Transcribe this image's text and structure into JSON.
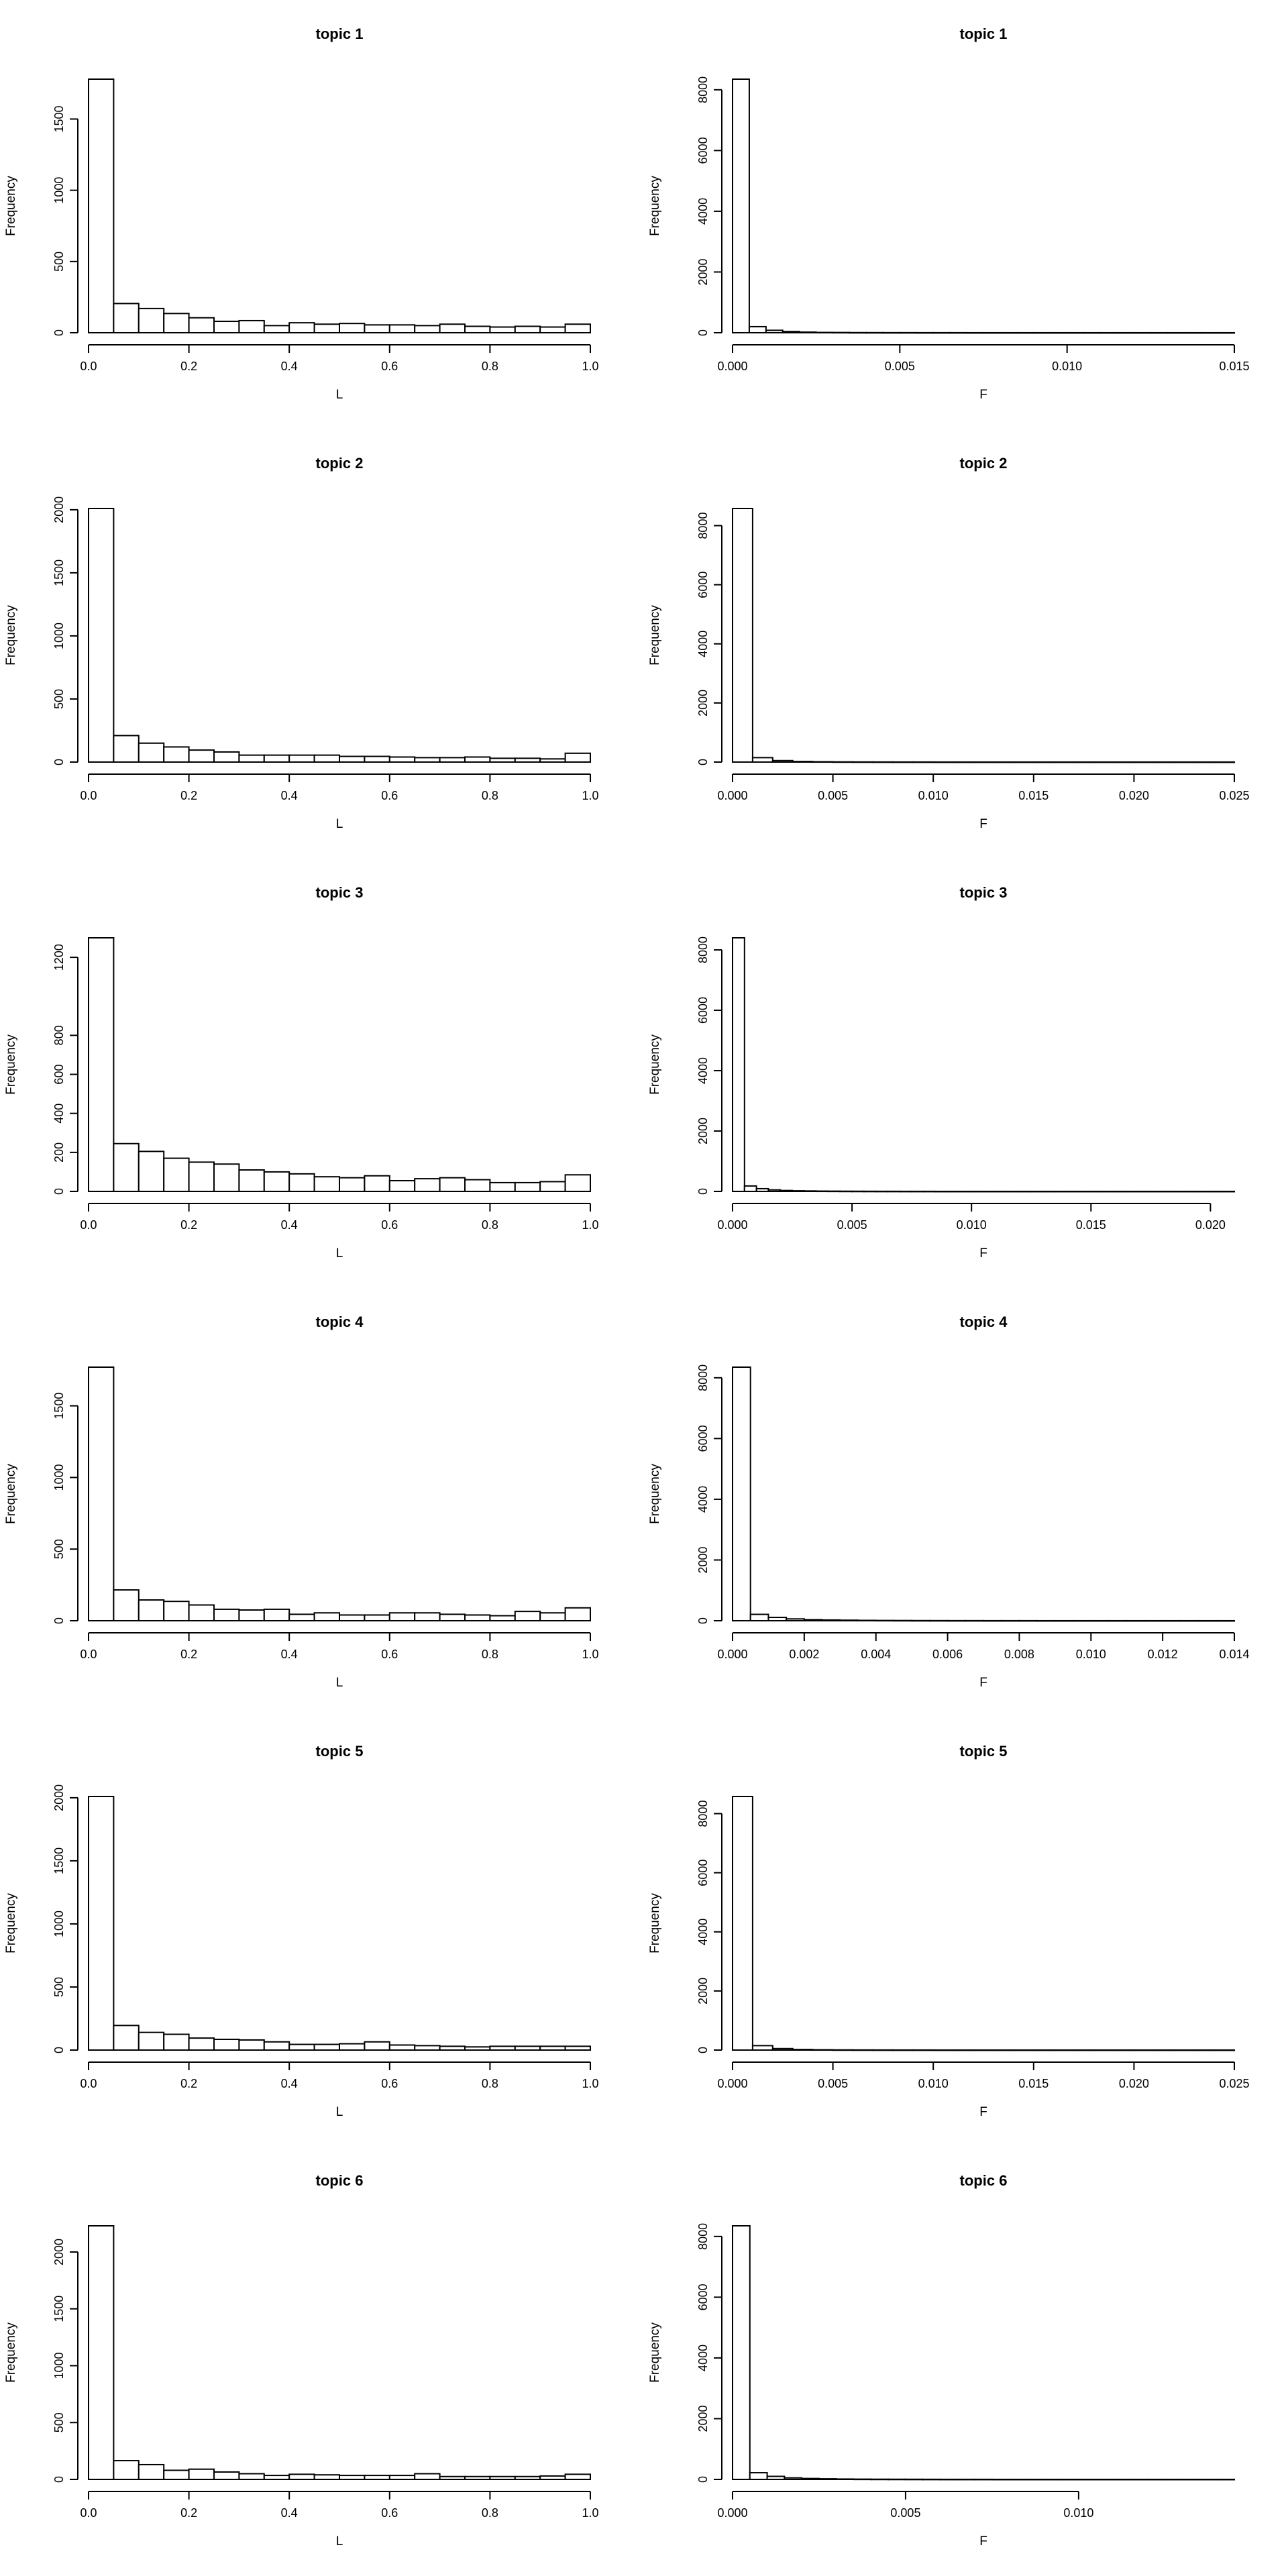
{
  "chart_data": [
    {
      "type": "bar",
      "title": "topic 1",
      "xlabel": "L",
      "ylabel": "Frequency",
      "xlim": [
        0,
        1
      ],
      "ylim": [
        0,
        1780
      ],
      "bin_width": 0.05,
      "xticks": [
        "0.0",
        "0.2",
        "0.4",
        "0.6",
        "0.8",
        "1.0"
      ],
      "yticks": [
        "0",
        "500",
        "1000",
        "1500"
      ],
      "values": [
        1780,
        205,
        170,
        135,
        105,
        80,
        85,
        50,
        70,
        60,
        65,
        55,
        55,
        50,
        60,
        45,
        40,
        45,
        40,
        60
      ]
    },
    {
      "type": "bar",
      "title": "topic 1",
      "xlabel": "F",
      "ylabel": "Frequency",
      "xlim": [
        0,
        0.015
      ],
      "ylim": [
        0,
        8350
      ],
      "bin_width": 0.0005,
      "xticks": [
        "0.000",
        "0.005",
        "0.010",
        "0.015"
      ],
      "yticks": [
        "0",
        "2000",
        "4000",
        "6000",
        "8000"
      ],
      "values": [
        8350,
        200,
        80,
        40,
        20,
        10,
        8,
        5,
        4,
        3,
        3,
        2,
        2,
        2,
        1,
        1,
        1,
        1,
        1,
        1,
        1,
        1,
        1,
        1,
        1,
        1,
        1,
        1,
        1,
        1
      ]
    },
    {
      "type": "bar",
      "title": "topic 2",
      "xlabel": "L",
      "ylabel": "Frequency",
      "xlim": [
        0,
        1
      ],
      "ylim": [
        0,
        2010
      ],
      "bin_width": 0.05,
      "xticks": [
        "0.0",
        "0.2",
        "0.4",
        "0.6",
        "0.8",
        "1.0"
      ],
      "yticks": [
        "0",
        "500",
        "1000",
        "1500",
        "2000"
      ],
      "values": [
        2010,
        210,
        150,
        120,
        95,
        80,
        55,
        55,
        55,
        55,
        45,
        45,
        40,
        35,
        35,
        40,
        30,
        30,
        25,
        70
      ]
    },
    {
      "type": "bar",
      "title": "topic 2",
      "xlabel": "F",
      "ylabel": "Frequency",
      "xlim": [
        0,
        0.025
      ],
      "ylim": [
        0,
        8580
      ],
      "bin_width": 0.001,
      "xticks": [
        "0.000",
        "0.005",
        "0.010",
        "0.015",
        "0.020",
        "0.025"
      ],
      "yticks": [
        "0",
        "2000",
        "4000",
        "6000",
        "8000"
      ],
      "values": [
        8580,
        150,
        50,
        20,
        10,
        6,
        4,
        3,
        2,
        2,
        1,
        1,
        1,
        1,
        1,
        1,
        1,
        1,
        1,
        1,
        1,
        1,
        1,
        1,
        1
      ]
    },
    {
      "type": "bar",
      "title": "topic 3",
      "xlabel": "L",
      "ylabel": "Frequency",
      "xlim": [
        0,
        1
      ],
      "ylim": [
        0,
        1300
      ],
      "bin_width": 0.05,
      "xticks": [
        "0.0",
        "0.2",
        "0.4",
        "0.6",
        "0.8",
        "1.0"
      ],
      "yticks": [
        "0",
        "200",
        "400",
        "600",
        "800",
        "1200"
      ],
      "values": [
        1300,
        245,
        205,
        170,
        150,
        140,
        110,
        100,
        90,
        75,
        70,
        80,
        55,
        65,
        70,
        60,
        45,
        45,
        50,
        85
      ]
    },
    {
      "type": "bar",
      "title": "topic 3",
      "xlabel": "F",
      "ylabel": "Frequency",
      "xlim": [
        0,
        0.021
      ],
      "ylim": [
        0,
        8400
      ],
      "bin_width": 0.0005,
      "xticks": [
        "0.000",
        "0.005",
        "0.010",
        "0.015",
        "0.020"
      ],
      "yticks": [
        "0",
        "2000",
        "4000",
        "6000",
        "8000"
      ],
      "values": [
        8400,
        180,
        90,
        50,
        30,
        20,
        15,
        10,
        8,
        6,
        5,
        4,
        3,
        3,
        2,
        2,
        2,
        1,
        1,
        1,
        1,
        1,
        1,
        1,
        1,
        1,
        1,
        1,
        1,
        1,
        1,
        1,
        1,
        1,
        1,
        1,
        1,
        1,
        1,
        1,
        1,
        1
      ]
    },
    {
      "type": "bar",
      "title": "topic 4",
      "xlabel": "L",
      "ylabel": "Frequency",
      "xlim": [
        0,
        1
      ],
      "ylim": [
        0,
        1770
      ],
      "bin_width": 0.05,
      "xticks": [
        "0.0",
        "0.2",
        "0.4",
        "0.6",
        "0.8",
        "1.0"
      ],
      "yticks": [
        "0",
        "500",
        "1000",
        "1500"
      ],
      "values": [
        1770,
        215,
        145,
        135,
        110,
        80,
        75,
        80,
        45,
        55,
        40,
        40,
        55,
        55,
        45,
        40,
        35,
        65,
        55,
        90
      ]
    },
    {
      "type": "bar",
      "title": "topic 4",
      "xlabel": "F",
      "ylabel": "Frequency",
      "xlim": [
        0,
        0.014
      ],
      "ylim": [
        0,
        8350
      ],
      "bin_width": 0.0005,
      "xticks": [
        "0.000",
        "0.002",
        "0.004",
        "0.006",
        "0.008",
        "0.010",
        "0.012",
        "0.014"
      ],
      "yticks": [
        "0",
        "2000",
        "4000",
        "6000",
        "8000"
      ],
      "values": [
        8350,
        210,
        110,
        60,
        35,
        25,
        18,
        12,
        9,
        7,
        5,
        4,
        3,
        3,
        2,
        2,
        2,
        1,
        1,
        1,
        1,
        1,
        1,
        1,
        1,
        1,
        1,
        1
      ]
    },
    {
      "type": "bar",
      "title": "topic 5",
      "xlabel": "L",
      "ylabel": "Frequency",
      "xlim": [
        0,
        1
      ],
      "ylim": [
        0,
        2010
      ],
      "bin_width": 0.05,
      "xticks": [
        "0.0",
        "0.2",
        "0.4",
        "0.6",
        "0.8",
        "1.0"
      ],
      "yticks": [
        "0",
        "500",
        "1000",
        "1500",
        "2000"
      ],
      "values": [
        2010,
        195,
        140,
        125,
        95,
        85,
        80,
        65,
        45,
        45,
        50,
        65,
        40,
        35,
        30,
        25,
        30,
        30,
        30,
        30
      ]
    },
    {
      "type": "bar",
      "title": "topic 5",
      "xlabel": "F",
      "ylabel": "Frequency",
      "xlim": [
        0,
        0.025
      ],
      "ylim": [
        0,
        8580
      ],
      "bin_width": 0.001,
      "xticks": [
        "0.000",
        "0.005",
        "0.010",
        "0.015",
        "0.020",
        "0.025"
      ],
      "yticks": [
        "0",
        "2000",
        "4000",
        "6000",
        "8000"
      ],
      "values": [
        8580,
        150,
        50,
        20,
        10,
        6,
        4,
        3,
        2,
        2,
        1,
        1,
        1,
        1,
        1,
        1,
        1,
        1,
        1,
        1,
        1,
        1,
        1,
        1,
        1
      ]
    },
    {
      "type": "bar",
      "title": "topic 6",
      "xlabel": "L",
      "ylabel": "Frequency",
      "xlim": [
        0,
        1
      ],
      "ylim": [
        0,
        2230
      ],
      "bin_width": 0.05,
      "xticks": [
        "0.0",
        "0.2",
        "0.4",
        "0.6",
        "0.8",
        "1.0"
      ],
      "yticks": [
        "0",
        "500",
        "1000",
        "1500",
        "2000"
      ],
      "values": [
        2230,
        165,
        130,
        80,
        90,
        65,
        50,
        35,
        45,
        40,
        35,
        35,
        35,
        50,
        25,
        25,
        25,
        25,
        30,
        45
      ]
    },
    {
      "type": "bar",
      "title": "topic 6",
      "xlabel": "F",
      "ylabel": "Frequency",
      "xlim": [
        0,
        0.0145
      ],
      "ylim": [
        0,
        8350
      ],
      "bin_width": 0.0005,
      "xticks": [
        "0.000",
        "0.005",
        "0.010"
      ],
      "yticks": [
        "0",
        "2000",
        "4000",
        "6000",
        "8000"
      ],
      "values": [
        8350,
        220,
        100,
        50,
        30,
        20,
        12,
        8,
        6,
        5,
        4,
        3,
        2,
        2,
        2,
        1,
        1,
        1,
        1,
        1,
        1,
        1,
        1,
        1,
        1,
        1,
        1,
        1,
        1
      ]
    }
  ]
}
